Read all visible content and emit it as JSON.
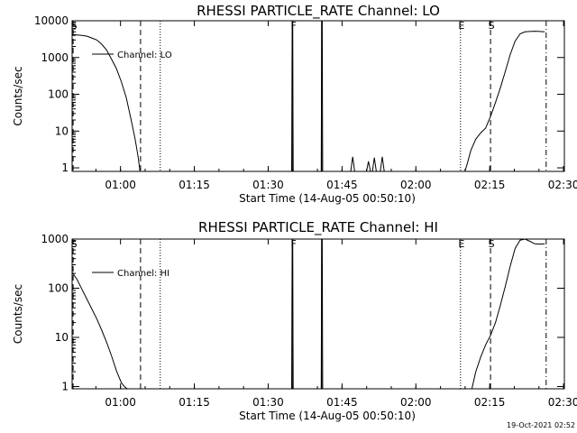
{
  "footer": {
    "timestamp": "19-Oct-2021 02:52"
  },
  "colors": {
    "background": "#ffffff",
    "foreground": "#000000"
  },
  "chart_data": [
    {
      "type": "line",
      "title": "RHESSI PARTICLE_RATE Channel: LO",
      "xlabel": "Start Time (14-Aug-05 00:50:10)",
      "ylabel": "Counts/sec",
      "y_scale": "log",
      "ylim": [
        0.8,
        10000
      ],
      "xlim_minutes": [
        0,
        100
      ],
      "x_ticks": [
        "01:00",
        "01:15",
        "01:30",
        "01:45",
        "02:00",
        "02:15",
        "02:30"
      ],
      "x_tick_minutes": [
        9.83,
        24.83,
        39.83,
        54.83,
        69.83,
        84.83,
        99.83
      ],
      "y_ticks": [
        "10000",
        "1000",
        "100",
        "10",
        "1"
      ],
      "y_tick_values": [
        10000,
        1000,
        100,
        10,
        1
      ],
      "legend": {
        "label": "Channel: LO",
        "position": "top-left"
      },
      "grid": false,
      "event_markers": [
        {
          "label": "S",
          "minute": 0.2,
          "style": "dashed"
        },
        {
          "label": "",
          "minute": 13.9,
          "style": "dashed"
        },
        {
          "label": "",
          "minute": 17.9,
          "style": "dotted"
        },
        {
          "label": "F",
          "minute": 44.8,
          "style": "solid"
        },
        {
          "label": "",
          "minute": 50.7,
          "style": "solid"
        },
        {
          "label": "E",
          "minute": 78.9,
          "style": "dotted"
        },
        {
          "label": "S",
          "minute": 85.0,
          "style": "dashed"
        },
        {
          "label": "",
          "minute": 96.3,
          "style": "dashdot"
        }
      ],
      "series": [
        {
          "label": "Channel: LO",
          "segments": [
            {
              "x": [
                0,
                1,
                2,
                3,
                4,
                5,
                6,
                7,
                8,
                9,
                10,
                11,
                12,
                12.8,
                13.4,
                13.8
              ],
              "y": [
                4200,
                4100,
                4000,
                3800,
                3400,
                3000,
                2300,
                1600,
                900,
                500,
                220,
                80,
                20,
                6,
                2,
                0.8
              ]
            },
            {
              "x": [
                44.6,
                44.7,
                44.8,
                44.9,
                50.6,
                50.7,
                50.8,
                50.9
              ],
              "y": [
                0.8,
                10000,
                10000,
                0.8,
                0.8,
                10000,
                10000,
                0.8
              ]
            },
            {
              "x": [
                56.6,
                57.0,
                57.4,
                59.8,
                60.2,
                60.6,
                61.0,
                61.4,
                61.8,
                62.6,
                63.0,
                63.4
              ],
              "y": [
                0.8,
                2,
                0.8,
                0.8,
                1.5,
                0.8,
                0.8,
                1.9,
                0.8,
                0.8,
                2,
                0.8
              ]
            },
            {
              "x": [
                79.8,
                80.2,
                81,
                82,
                83,
                84,
                85,
                86,
                87,
                88,
                89,
                90,
                91,
                92,
                93,
                94,
                95,
                96
              ],
              "y": [
                0.8,
                1.2,
                3,
                6,
                9,
                12,
                25,
                60,
                150,
                420,
                1200,
                2800,
                4400,
                5000,
                5100,
                5200,
                5100,
                5000
              ]
            }
          ]
        }
      ]
    },
    {
      "type": "line",
      "title": "RHESSI PARTICLE_RATE Channel: HI",
      "xlabel": "Start Time (14-Aug-05 00:50:10)",
      "ylabel": "Counts/sec",
      "y_scale": "log",
      "ylim": [
        0.9,
        1000
      ],
      "xlim_minutes": [
        0,
        100
      ],
      "x_ticks": [
        "01:00",
        "01:15",
        "01:30",
        "01:45",
        "02:00",
        "02:15",
        "02:30"
      ],
      "x_tick_minutes": [
        9.83,
        24.83,
        39.83,
        54.83,
        69.83,
        84.83,
        99.83
      ],
      "y_ticks": [
        "1000",
        "100",
        "10",
        "1"
      ],
      "y_tick_values": [
        1000,
        100,
        10,
        1
      ],
      "legend": {
        "label": "Channel: HI",
        "position": "top-left"
      },
      "grid": false,
      "event_markers": [
        {
          "label": "S",
          "minute": 0.2,
          "style": "dashed"
        },
        {
          "label": "",
          "minute": 13.9,
          "style": "dashed"
        },
        {
          "label": "",
          "minute": 17.9,
          "style": "dotted"
        },
        {
          "label": "F",
          "minute": 44.8,
          "style": "solid"
        },
        {
          "label": "",
          "minute": 50.7,
          "style": "solid"
        },
        {
          "label": "E",
          "minute": 78.9,
          "style": "dotted"
        },
        {
          "label": "S",
          "minute": 85.0,
          "style": "dashed"
        },
        {
          "label": "",
          "minute": 96.3,
          "style": "dashdot"
        }
      ],
      "series": [
        {
          "label": "Channel: HI",
          "segments": [
            {
              "x": [
                0,
                1,
                2,
                3,
                4,
                5,
                6,
                7,
                8,
                9,
                10,
                10.6,
                11.2
              ],
              "y": [
                210,
                150,
                95,
                60,
                38,
                24,
                14,
                8,
                4.2,
                2.1,
                1.2,
                1.0,
                0.9
              ]
            },
            {
              "x": [
                44.6,
                44.7,
                44.8,
                44.9,
                50.6,
                50.7,
                50.8,
                50.9
              ],
              "y": [
                0.9,
                1000,
                1000,
                0.9,
                0.9,
                1000,
                1000,
                0.9
              ]
            },
            {
              "x": [
                81.2,
                82,
                83,
                84,
                85,
                86,
                87,
                88,
                89,
                90,
                91,
                92,
                93,
                94,
                95,
                96
              ],
              "y": [
                0.9,
                2,
                4,
                7,
                11,
                20,
                45,
                110,
                280,
                650,
                950,
                1000,
                900,
                800,
                790,
                800
              ]
            }
          ]
        }
      ]
    }
  ]
}
